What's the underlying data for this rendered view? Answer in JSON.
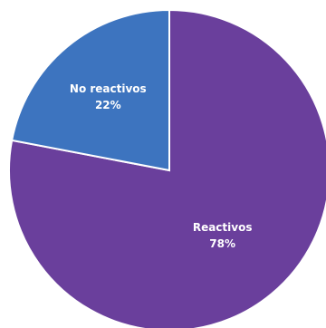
{
  "chart_data": {
    "type": "pie",
    "start_angle_deg": 0,
    "direction": "clockwise",
    "slices": [
      {
        "label": "Reactivos",
        "value": 78,
        "value_label": "78%",
        "color": "#6a3f9c"
      },
      {
        "label": "No reactivos",
        "value": 22,
        "value_label": "22%",
        "color": "#3d74bf"
      }
    ],
    "slice_border_color": "#ffffff"
  }
}
